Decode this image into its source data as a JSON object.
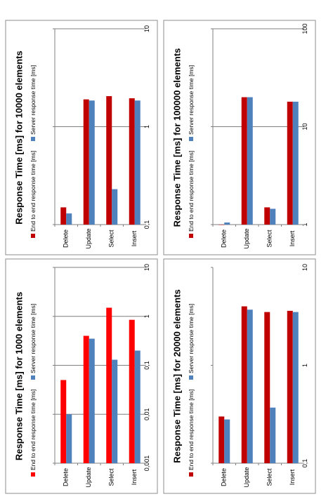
{
  "colors": {
    "end_to_end_bright": "#ff0000",
    "end_to_end_dark": "#c00000",
    "server": "#4f81bd"
  },
  "chart_data": [
    {
      "type": "bar",
      "title": "Response Time [ms] for 1000 elements",
      "orientation": "horizontal",
      "log_scale": true,
      "categories": [
        "Delete",
        "Update",
        "Select",
        "Insert"
      ],
      "xlim": [
        0.001,
        10
      ],
      "tick_labels": [
        "0,001",
        "0,01",
        "0,1",
        "1",
        "10"
      ],
      "grid": true,
      "legend_position": "bottom",
      "series": [
        {
          "name": "End to end response time [ms]",
          "color_key": "end_to_end_bright",
          "values": [
            0.05,
            0.4,
            1.5,
            0.85
          ]
        },
        {
          "name": "Server response time [ms]",
          "color_key": "server",
          "values": [
            0.01,
            0.35,
            0.13,
            0.2
          ]
        }
      ]
    },
    {
      "type": "bar",
      "title": "Response Time [ms] for 10000 elements",
      "orientation": "horizontal",
      "log_scale": true,
      "categories": [
        "Delete",
        "Update",
        "Select",
        "Insert"
      ],
      "xlim": [
        0.1,
        10
      ],
      "tick_labels": [
        "0,1",
        "1",
        "10"
      ],
      "grid": true,
      "legend_position": "bottom",
      "series": [
        {
          "name": "End to end response time [ms]",
          "color_key": "end_to_end_dark",
          "values": [
            0.15,
            1.9,
            2.05,
            1.95
          ]
        },
        {
          "name": "Server response time [ms]",
          "color_key": "server",
          "values": [
            0.13,
            1.85,
            0.23,
            1.85
          ]
        }
      ]
    },
    {
      "type": "bar",
      "title": "Response Time [ms] for 20000 elements",
      "orientation": "horizontal",
      "log_scale": true,
      "categories": [
        "Delete",
        "Update",
        "Select",
        "Insert"
      ],
      "xlim": [
        0.1,
        10
      ],
      "tick_labels": [
        "0,1",
        "1",
        "10"
      ],
      "grid": false,
      "legend_position": "bottom",
      "series": [
        {
          "name": "End to end response time [ms]",
          "color_key": "end_to_end_dark",
          "values": [
            0.3,
            4.0,
            3.5,
            3.6
          ]
        },
        {
          "name": "Server response time [ms]",
          "color_key": "server",
          "values": [
            0.28,
            3.7,
            0.37,
            3.5
          ]
        }
      ]
    },
    {
      "type": "bar",
      "title": "Response Time [ms] for 100000 elements",
      "orientation": "horizontal",
      "log_scale": true,
      "categories": [
        "Delete",
        "Update",
        "Select",
        "Insert"
      ],
      "xlim": [
        1,
        100
      ],
      "tick_labels": [
        "1",
        "10",
        "100"
      ],
      "grid": true,
      "legend_position": "bottom",
      "series": [
        {
          "name": "End to end response time [ms]",
          "color_key": "end_to_end_dark",
          "values": [
            1.0,
            20.0,
            1.5,
            18.0
          ]
        },
        {
          "name": "Server response time [ms]",
          "color_key": "server",
          "values": [
            1.05,
            20.0,
            1.45,
            18.0
          ]
        }
      ]
    }
  ]
}
